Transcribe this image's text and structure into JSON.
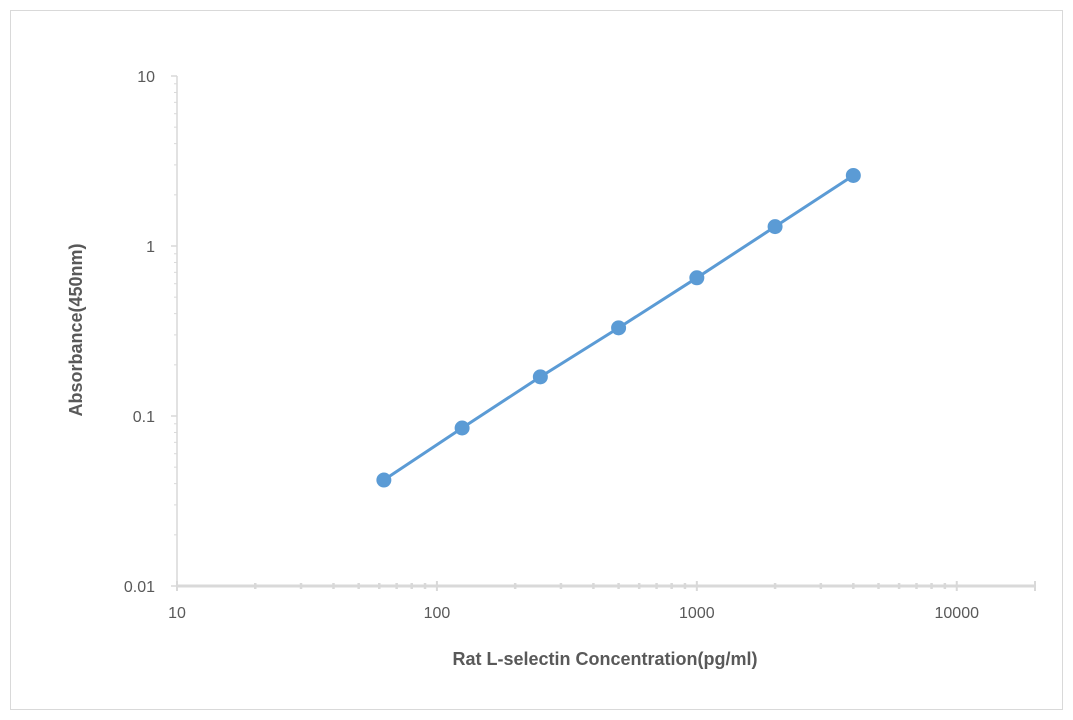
{
  "chart_data": {
    "type": "scatter",
    "title": "",
    "xlabel": "Rat L-selectin Concentration(pg/ml)",
    "ylabel": "Absorbance(450nm)",
    "x_scale": "log",
    "y_scale": "log",
    "xlim": [
      10,
      20000
    ],
    "ylim": [
      0.01,
      10
    ],
    "x_ticks": [
      10,
      100,
      1000,
      10000
    ],
    "x_tick_labels": [
      "10",
      "100",
      "1000",
      "10000"
    ],
    "y_ticks": [
      0.01,
      0.1,
      1,
      10
    ],
    "y_tick_labels": [
      "0.01",
      "0.1",
      "1",
      "10"
    ],
    "grid": false,
    "legend": "none",
    "series": [
      {
        "color": "#5b9bd5",
        "markers": true,
        "line": true,
        "x": [
          62.5,
          125,
          250,
          500,
          1000,
          2000,
          4000
        ],
        "y": [
          0.042,
          0.085,
          0.17,
          0.33,
          0.65,
          1.3,
          2.6
        ]
      }
    ],
    "axis_color": "#d9d9d9"
  }
}
